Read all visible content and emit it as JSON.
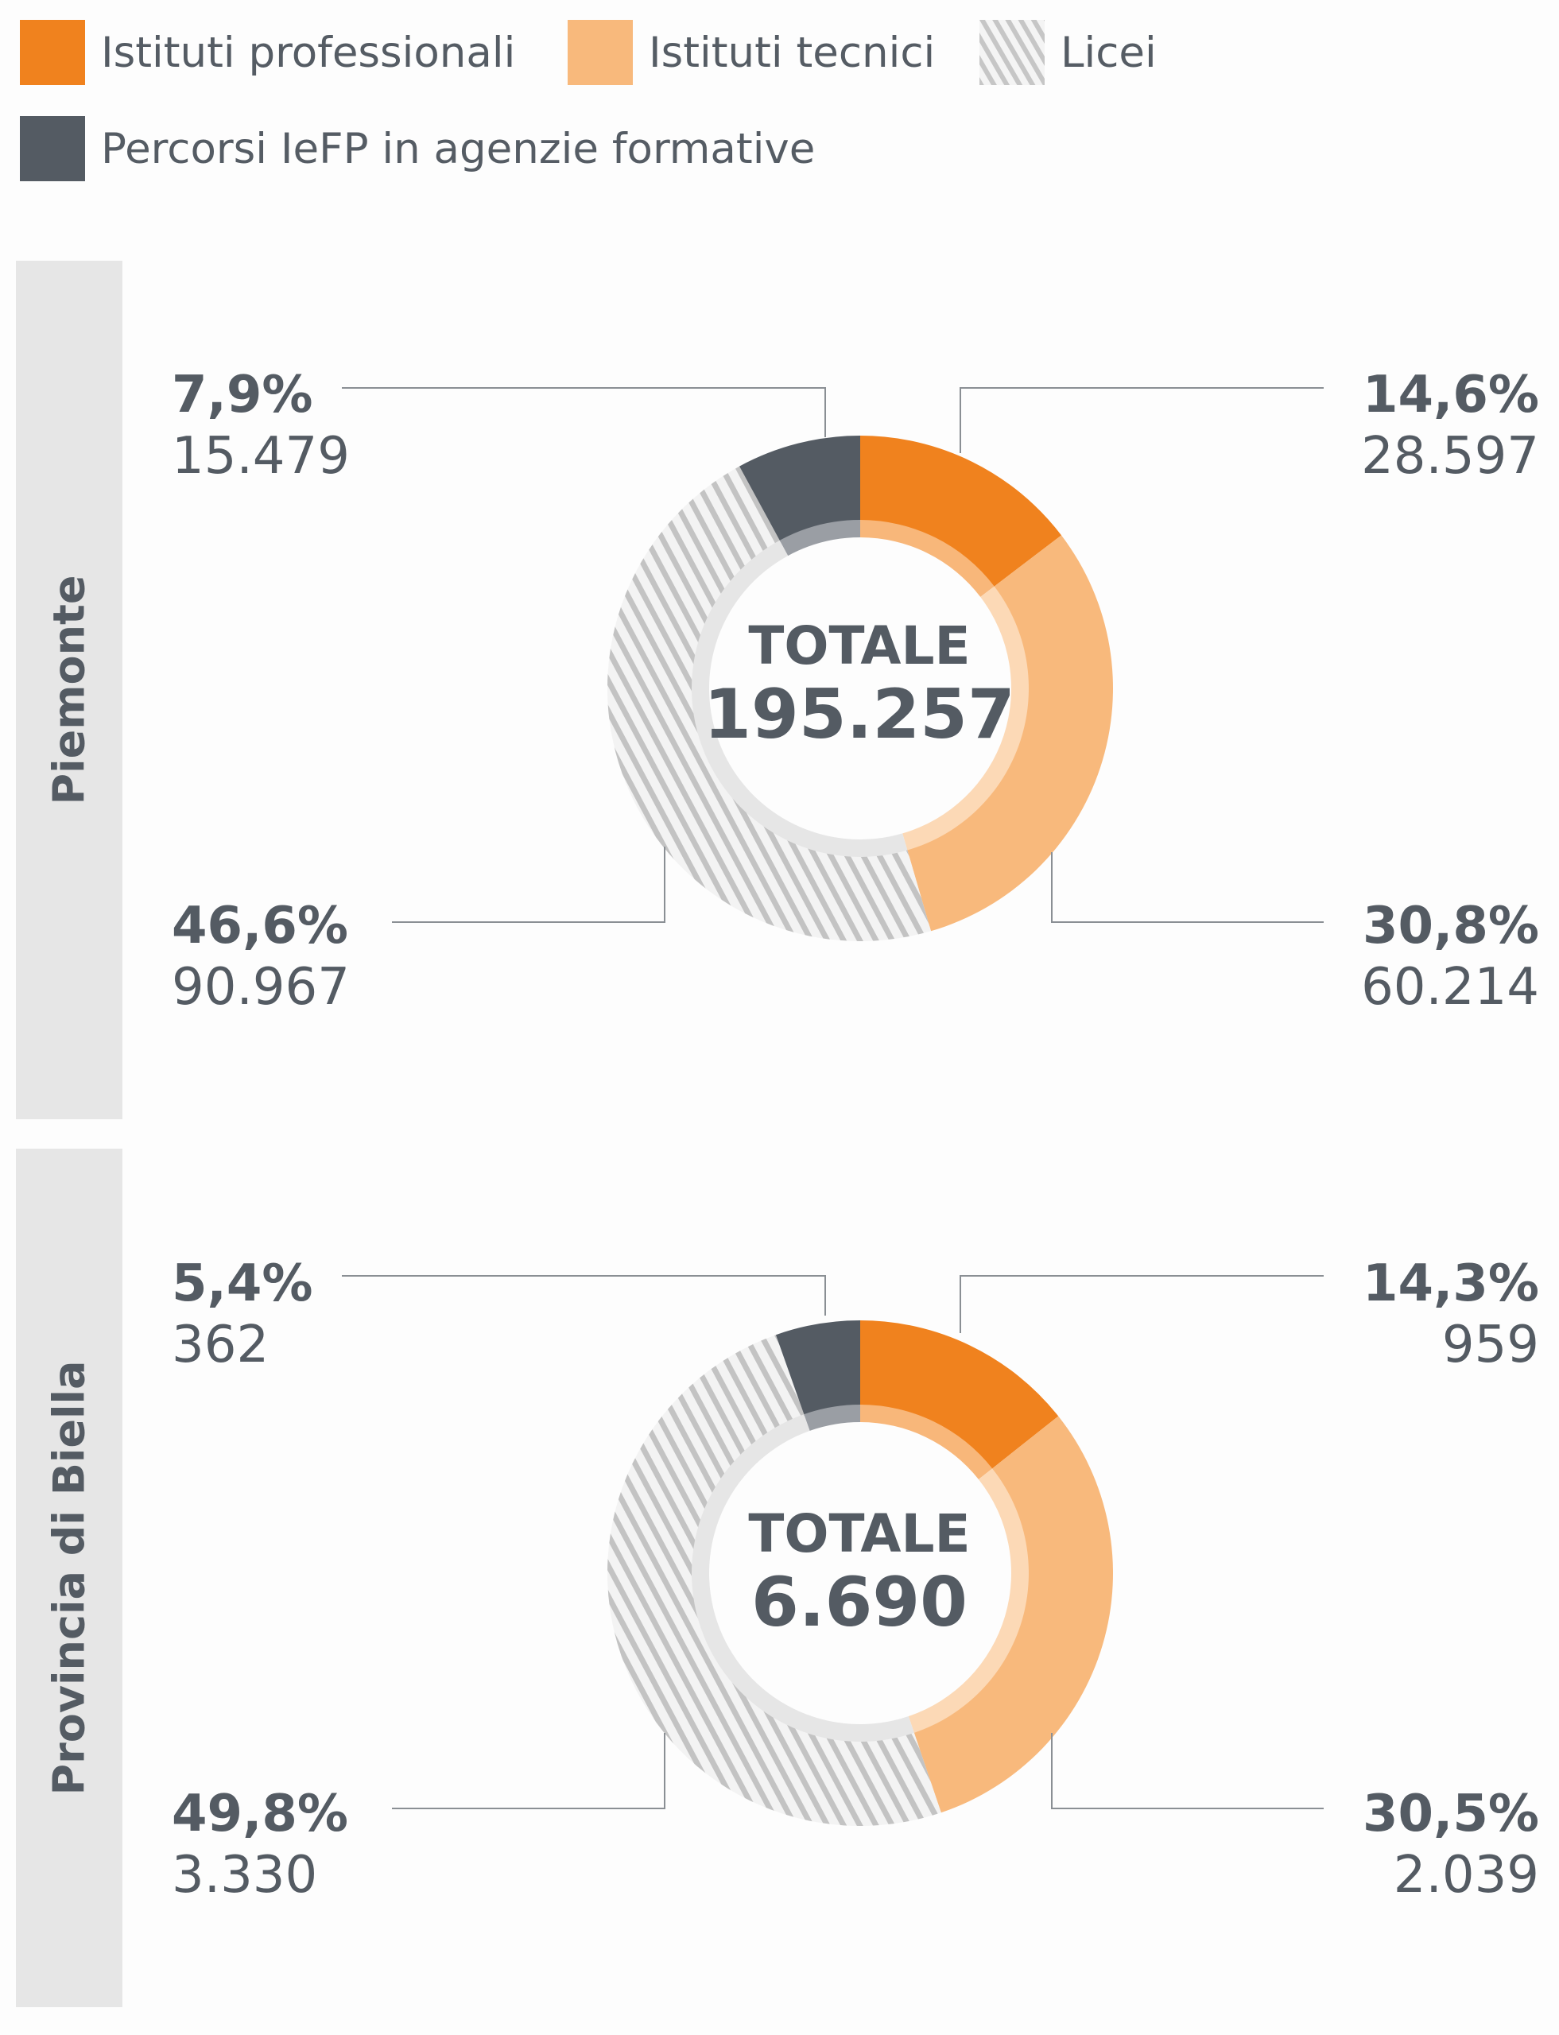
{
  "legend": [
    {
      "label": "Istituti professionali",
      "color": "#f0821e",
      "pattern": "solid"
    },
    {
      "label": "Istituti tecnici",
      "color": "#f8b97c",
      "pattern": "solid"
    },
    {
      "label": "Licei",
      "color": "#c8c8c8",
      "pattern": "hatched"
    },
    {
      "label": "Percorsi IeFP in agenzie formative",
      "color": "#545b63",
      "pattern": "solid"
    }
  ],
  "chart_data": [
    {
      "type": "pie",
      "region": "Piemonte",
      "total_label": "TOTALE",
      "total": "195.257",
      "series": [
        "Istituti professionali",
        "Istituti tecnici",
        "Licei",
        "Percorsi IeFP in agenzie formative"
      ],
      "values": [
        28597,
        60214,
        90967,
        15479
      ],
      "percent": [
        14.6,
        30.8,
        46.6,
        7.9
      ],
      "labels": [
        {
          "pct": "14,6%",
          "count": "28.597"
        },
        {
          "pct": "30,8%",
          "count": "60.214"
        },
        {
          "pct": "46,6%",
          "count": "90.967"
        },
        {
          "pct": "7,9%",
          "count": "15.479"
        }
      ]
    },
    {
      "type": "pie",
      "region": "Provincia di Biella",
      "total_label": "TOTALE",
      "total": "6.690",
      "series": [
        "Istituti professionali",
        "Istituti tecnici",
        "Licei",
        "Percorsi IeFP in agenzie formative"
      ],
      "values": [
        959,
        2039,
        3330,
        362
      ],
      "percent": [
        14.3,
        30.5,
        49.8,
        5.4
      ],
      "labels": [
        {
          "pct": "14,3%",
          "count": "959"
        },
        {
          "pct": "30,5%",
          "count": "2.039"
        },
        {
          "pct": "49,8%",
          "count": "3.330"
        },
        {
          "pct": "5,4%",
          "count": "362"
        }
      ]
    }
  ]
}
